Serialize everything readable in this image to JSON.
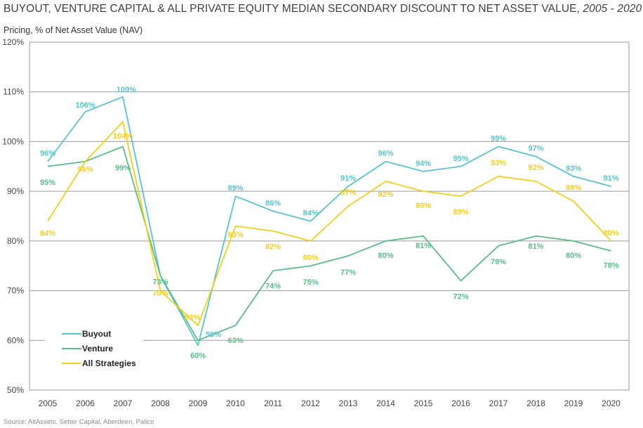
{
  "title": "BUYOUT, VENTURE CAPITAL & ALL PRIVATE EQUITY MEDIAN SECONDARY DISCOUNT TO NET ASSET VALUE,",
  "title_range": "2005 - 2020",
  "subtitle": "Pricing, % of Net Asset Value (NAV)",
  "source": "Source: AltAssets, Setter Capital, Aberdeen, Palico",
  "chart_data": {
    "type": "line",
    "x": [
      "2005",
      "2006",
      "2007",
      "2008",
      "2009",
      "2010",
      "2011",
      "2012",
      "2013",
      "2014",
      "2015",
      "2016",
      "2017",
      "2018",
      "2019",
      "2020"
    ],
    "ylim": [
      50,
      120
    ],
    "yticks": [
      "50%",
      "60%",
      "70%",
      "80%",
      "90%",
      "100%",
      "110%",
      "120%"
    ],
    "grid": true,
    "legend_position": "bottom-left",
    "series": [
      {
        "name": "Buyout",
        "color": "#5bc4c9",
        "values": [
          96,
          106,
          109,
          73,
          59,
          89,
          86,
          84,
          91,
          96,
          94,
          95,
          99,
          97,
          93,
          91
        ],
        "labels": [
          "96%",
          "106%",
          "109%",
          "",
          "59%",
          "89%",
          "86%",
          "84%",
          "91%",
          "96%",
          "94%",
          "95%",
          "99%",
          "97%",
          "93%",
          "91%"
        ]
      },
      {
        "name": "Venture",
        "color": "#5dbb8a",
        "values": [
          95,
          96,
          99,
          73,
          60,
          63,
          74,
          75,
          77,
          80,
          81,
          72,
          79,
          81,
          80,
          78
        ],
        "labels": [
          "95%",
          "",
          "99%",
          "73%",
          "60%",
          "63%",
          "74%",
          "75%",
          "77%",
          "80%",
          "81%",
          "72%",
          "79%",
          "81%",
          "80%",
          "78%"
        ]
      },
      {
        "name": "All Strategies",
        "color": "#f0d020",
        "values": [
          84,
          96,
          104,
          70,
          63,
          83,
          82,
          80,
          87,
          92,
          90,
          89,
          93,
          92,
          88,
          80
        ],
        "labels": [
          "84%",
          "96%",
          "104%",
          "70%",
          "63%",
          "83%",
          "82%",
          "80%",
          "87%",
          "92%",
          "90%",
          "89%",
          "93%",
          "92%",
          "88%",
          "80%"
        ]
      }
    ]
  }
}
